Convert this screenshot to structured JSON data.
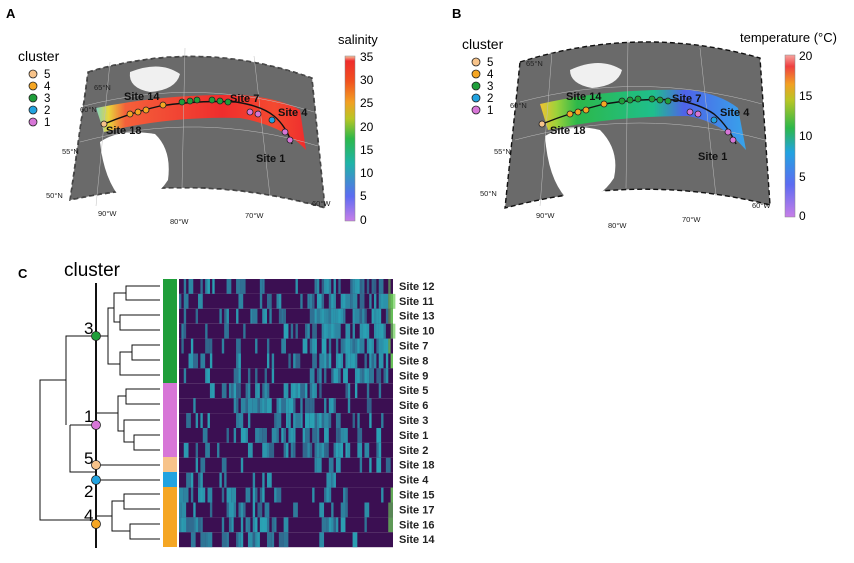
{
  "panel_a": {
    "letter": "A",
    "legend_title": "cluster",
    "legend_items": [
      {
        "label": "5",
        "color": "#f7c38a"
      },
      {
        "label": "4",
        "color": "#f5a623"
      },
      {
        "label": "3",
        "color": "#1f9e3a"
      },
      {
        "label": "2",
        "color": "#22a3e0"
      },
      {
        "label": "1",
        "color": "#d776d7"
      }
    ],
    "colorbar_title": "salinity",
    "colorbar_ticks": [
      "35",
      "30",
      "25",
      "20",
      "15",
      "10",
      "5",
      "0"
    ],
    "lat_labels": [
      "65°N",
      "60°N",
      "55°N",
      "50°N"
    ],
    "lon_labels": [
      "90°W",
      "80°W",
      "70°W",
      "60°W"
    ],
    "site_labels": [
      "Site 14",
      "Site 7",
      "Site 4",
      "Site 18",
      "Site 1"
    ]
  },
  "panel_b": {
    "letter": "B",
    "legend_title": "cluster",
    "legend_items": [
      {
        "label": "5",
        "color": "#f7c38a"
      },
      {
        "label": "4",
        "color": "#f5a623"
      },
      {
        "label": "3",
        "color": "#1f9e3a"
      },
      {
        "label": "2",
        "color": "#22a3e0"
      },
      {
        "label": "1",
        "color": "#d776d7"
      }
    ],
    "colorbar_title": "temperature (°C)",
    "colorbar_ticks": [
      "20",
      "15",
      "10",
      "5",
      "0"
    ],
    "lat_labels": [
      "65°N",
      "60°N",
      "55°N",
      "50°N"
    ],
    "lon_labels": [
      "90°W",
      "80°W",
      "70°W",
      "60°W"
    ],
    "site_labels": [
      "Site 14",
      "Site 7",
      "Site 4",
      "Site 18",
      "Site 1"
    ]
  },
  "panel_c": {
    "letter": "C",
    "title": "cluster",
    "cluster_numbers": [
      {
        "label": "3",
        "color": "#1f9e3a"
      },
      {
        "label": "1",
        "color": "#d776d7"
      },
      {
        "label": "5",
        "color": "#f7c38a"
      },
      {
        "label": "2",
        "color": "#22a3e0"
      },
      {
        "label": "4",
        "color": "#f5a623"
      }
    ],
    "rows": [
      {
        "site": "Site 12",
        "cluster": "3"
      },
      {
        "site": "Site 11",
        "cluster": "3"
      },
      {
        "site": "Site 13",
        "cluster": "3"
      },
      {
        "site": "Site 10",
        "cluster": "3"
      },
      {
        "site": "Site 7",
        "cluster": "3"
      },
      {
        "site": "Site 8",
        "cluster": "3"
      },
      {
        "site": "Site 9",
        "cluster": "3"
      },
      {
        "site": "Site 5",
        "cluster": "1"
      },
      {
        "site": "Site 6",
        "cluster": "1"
      },
      {
        "site": "Site 3",
        "cluster": "1"
      },
      {
        "site": "Site 1",
        "cluster": "1"
      },
      {
        "site": "Site 2",
        "cluster": "1"
      },
      {
        "site": "Site 18",
        "cluster": "5"
      },
      {
        "site": "Site 4",
        "cluster": "2"
      },
      {
        "site": "Site 15",
        "cluster": "4"
      },
      {
        "site": "Site 17",
        "cluster": "4"
      },
      {
        "site": "Site 16",
        "cluster": "4"
      },
      {
        "site": "Site 14",
        "cluster": "4"
      }
    ],
    "heatmap_colors": {
      "low": "#3b0f52",
      "high": "#2aa3b5",
      "max": "#6cce59"
    }
  }
}
